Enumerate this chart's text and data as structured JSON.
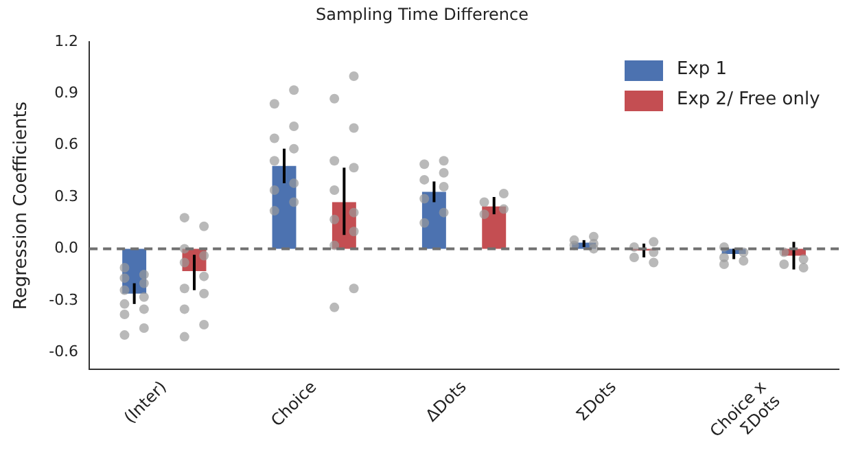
{
  "chart_data": {
    "type": "bar",
    "title": "Sampling Time Difference",
    "ylabel": "Regression Coefficients",
    "categories": [
      "(Inter)",
      "Choice",
      "ΔDots",
      "ΣDots",
      "Choice x ΣDots"
    ],
    "series": [
      {
        "name": "Exp 1",
        "color": "#4c72b0",
        "values": [
          -0.26,
          0.48,
          0.33,
          0.035,
          -0.03
        ],
        "errors": [
          [
            -0.32,
            -0.2
          ],
          [
            0.38,
            0.58
          ],
          [
            0.27,
            0.39
          ],
          [
            0.01,
            0.05
          ],
          [
            -0.06,
            0.0
          ]
        ]
      },
      {
        "name": "Exp 2/ Free only",
        "color": "#c44e52",
        "values": [
          -0.13,
          0.27,
          0.245,
          -0.01,
          -0.04
        ],
        "errors": [
          [
            -0.24,
            -0.035
          ],
          [
            0.08,
            0.47
          ],
          [
            0.2,
            0.3
          ],
          [
            -0.05,
            0.03
          ],
          [
            -0.12,
            0.04
          ]
        ]
      },
      {
        "type": "scatter",
        "color": "#9a9a9a",
        "x": [
          "(Inter)",
          "(Inter)",
          "(Inter)",
          "(Inter)",
          "(Inter)",
          "(Inter)",
          "(Inter)",
          "(Inter)",
          "(Inter)",
          "(Inter)",
          "(Inter)",
          "Choice",
          "Choice",
          "Choice",
          "Choice",
          "Choice",
          "Choice",
          "Choice",
          "Choice",
          "Choice",
          "Choice",
          "ΔDots",
          "ΔDots",
          "ΔDots",
          "ΔDots",
          "ΔDots",
          "ΔDots",
          "ΔDots",
          "ΔDots",
          "ΣDots",
          "ΣDots",
          "ΣDots",
          "ΣDots",
          "ΣDots",
          "Choice x ΣDots",
          "Choice x ΣDots",
          "Choice x ΣDots",
          "Choice x ΣDots",
          "Choice x ΣDots"
        ],
        "values": [
          -0.11,
          -0.15,
          -0.17,
          -0.2,
          -0.24,
          -0.28,
          -0.32,
          -0.35,
          -0.38,
          -0.46,
          -0.5,
          0.92,
          0.84,
          0.71,
          0.64,
          0.58,
          0.51,
          0.38,
          0.34,
          0.27,
          0.22,
          0.51,
          0.49,
          0.44,
          0.4,
          0.36,
          0.29,
          0.21,
          0.15,
          0.07,
          0.05,
          0.03,
          0.02,
          0.0,
          0.01,
          -0.02,
          -0.05,
          -0.07,
          -0.09
        ]
      },
      {
        "type": "scatter",
        "color": "#9a9a9a",
        "x": [
          "(Inter)",
          "(Inter)",
          "(Inter)",
          "(Inter)",
          "(Inter)",
          "(Inter)",
          "(Inter)",
          "(Inter)",
          "(Inter)",
          "(Inter)",
          "(Inter)",
          "Choice",
          "Choice",
          "Choice",
          "Choice",
          "Choice",
          "Choice",
          "Choice",
          "Choice",
          "Choice",
          "Choice",
          "Choice",
          "Choice",
          "ΔDots",
          "ΔDots",
          "ΔDots",
          "ΔDots",
          "ΣDots",
          "ΣDots",
          "ΣDots",
          "ΣDots",
          "ΣDots",
          "Choice x ΣDots",
          "Choice x ΣDots",
          "Choice x ΣDots",
          "Choice x ΣDots"
        ],
        "values": [
          0.18,
          0.13,
          0.0,
          -0.04,
          -0.08,
          -0.16,
          -0.23,
          -0.26,
          -0.35,
          -0.44,
          -0.51,
          1.0,
          0.87,
          0.7,
          0.51,
          0.47,
          0.34,
          0.21,
          0.17,
          0.1,
          0.02,
          -0.23,
          -0.34,
          0.32,
          0.27,
          0.23,
          0.2,
          0.04,
          0.01,
          -0.02,
          -0.05,
          -0.08,
          -0.02,
          -0.06,
          -0.09,
          -0.11
        ]
      }
    ],
    "ylim": [
      -0.7,
      1.2
    ],
    "yticks": [
      -0.6,
      -0.3,
      {
        "value": 0,
        "label": "0.0"
      },
      0.3,
      0.6,
      0.9,
      1.2
    ],
    "ref_lines": [
      {
        "axis": "y",
        "value": 0,
        "color": "#707070",
        "line_style": "dashed"
      }
    ],
    "grid": false,
    "legend": "top right"
  }
}
